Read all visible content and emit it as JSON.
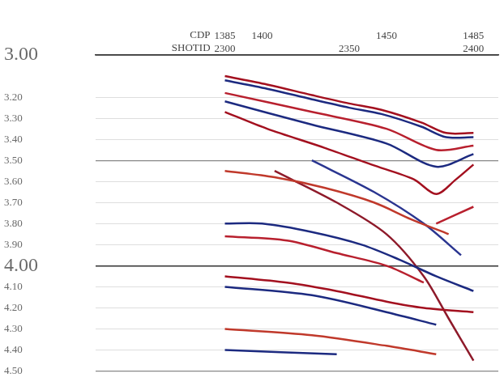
{
  "chart_data": {
    "type": "line",
    "x_label": "CDP",
    "xlim": [
      1333,
      1495
    ],
    "xticks": [
      1385,
      1400,
      1450,
      1485
    ],
    "x2_label": "SHOTID",
    "x2lim": [
      2248,
      2410
    ],
    "x2ticks": [
      2300,
      2350,
      2400
    ],
    "ylim": [
      4.5,
      3.0
    ],
    "yticks": [
      {
        "value": 3.0,
        "label": "3.00"
      },
      {
        "value": 3.2,
        "label": "3.20"
      },
      {
        "value": 3.3,
        "label": "3.30"
      },
      {
        "value": 3.4,
        "label": "3.40"
      },
      {
        "value": 3.5,
        "label": "3.50"
      },
      {
        "value": 3.6,
        "label": "3.60"
      },
      {
        "value": 3.7,
        "label": "3.70"
      },
      {
        "value": 3.8,
        "label": "3.80"
      },
      {
        "value": 3.9,
        "label": "3.90"
      },
      {
        "value": 4.0,
        "label": "4.00"
      },
      {
        "value": 4.1,
        "label": "4.10"
      },
      {
        "value": 4.2,
        "label": "4.20"
      },
      {
        "value": 4.3,
        "label": "4.30"
      },
      {
        "value": 4.4,
        "label": "4.40"
      },
      {
        "value": 4.5,
        "label": "4.50"
      }
    ],
    "grid": true,
    "series": [
      {
        "color": "#a3101f",
        "x": [
          1385,
          1402,
          1420,
          1435,
          1448,
          1464,
          1474,
          1485
        ],
        "values": [
          3.1,
          3.14,
          3.19,
          3.23,
          3.26,
          3.32,
          3.37,
          3.37
        ]
      },
      {
        "color": "#1c2a80",
        "x": [
          1385,
          1402,
          1420,
          1435,
          1448,
          1464,
          1474,
          1485
        ],
        "values": [
          3.12,
          3.16,
          3.21,
          3.25,
          3.28,
          3.34,
          3.39,
          3.39
        ]
      },
      {
        "color": "#b8202e",
        "x": [
          1385,
          1420,
          1450,
          1470,
          1485
        ],
        "values": [
          3.18,
          3.27,
          3.35,
          3.45,
          3.43
        ]
      },
      {
        "color": "#1c2a80",
        "x": [
          1385,
          1420,
          1450,
          1470,
          1485
        ],
        "values": [
          3.22,
          3.33,
          3.42,
          3.53,
          3.47
        ]
      },
      {
        "color": "#a3101f",
        "x": [
          1385,
          1402,
          1425,
          1444,
          1461,
          1470,
          1478,
          1485
        ],
        "values": [
          3.27,
          3.35,
          3.44,
          3.52,
          3.59,
          3.66,
          3.59,
          3.52
        ]
      },
      {
        "color": "#c0392b",
        "x": [
          1385,
          1405,
          1425,
          1445,
          1460,
          1475
        ],
        "values": [
          3.55,
          3.58,
          3.63,
          3.7,
          3.78,
          3.85
        ]
      },
      {
        "color": "#1c2a80",
        "x": [
          1385,
          1400,
          1420,
          1440,
          1455,
          1470,
          1485
        ],
        "values": [
          3.8,
          3.8,
          3.84,
          3.9,
          3.97,
          4.05,
          4.12
        ]
      },
      {
        "color": "#b8202e",
        "x": [
          1385,
          1410,
          1430,
          1450,
          1465
        ],
        "values": [
          3.86,
          3.88,
          3.94,
          4.0,
          4.08
        ]
      },
      {
        "color": "#a3101f",
        "x": [
          1385,
          1410,
          1430,
          1450,
          1465,
          1485
        ],
        "values": [
          4.05,
          4.08,
          4.12,
          4.17,
          4.2,
          4.22
        ]
      },
      {
        "color": "#1c2a80",
        "x": [
          1385,
          1420,
          1450,
          1470
        ],
        "values": [
          4.1,
          4.14,
          4.22,
          4.28
        ]
      },
      {
        "color": "#8e1a2a",
        "x": [
          1405,
          1430,
          1450,
          1465,
          1475,
          1485
        ],
        "values": [
          3.55,
          3.7,
          3.85,
          4.05,
          4.25,
          4.45
        ]
      },
      {
        "color": "#2a3590",
        "x": [
          1420,
          1445,
          1465,
          1480
        ],
        "values": [
          3.5,
          3.65,
          3.8,
          3.95
        ]
      },
      {
        "color": "#b8202e",
        "x": [
          1470,
          1485
        ],
        "values": [
          3.8,
          3.72
        ]
      },
      {
        "color": "#c0392b",
        "x": [
          1385,
          1420,
          1450,
          1470
        ],
        "values": [
          4.3,
          4.33,
          4.38,
          4.42
        ]
      },
      {
        "color": "#1c2a80",
        "x": [
          1385,
          1430
        ],
        "values": [
          4.4,
          4.42
        ]
      }
    ]
  }
}
